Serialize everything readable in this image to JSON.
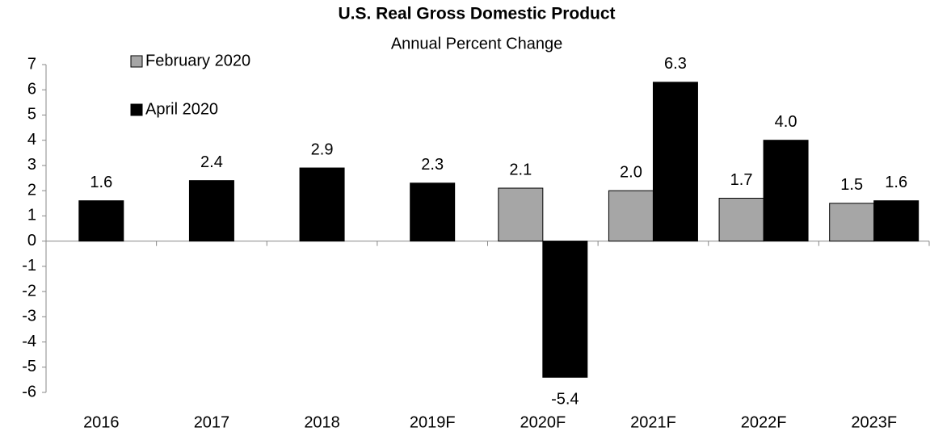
{
  "chart_data": {
    "type": "bar",
    "title": "U.S. Real Gross Domestic Product",
    "subtitle": "Annual Percent Change",
    "categories": [
      "2016",
      "2017",
      "2018",
      "2019F",
      "2020F",
      "2021F",
      "2022F",
      "2023F"
    ],
    "series": [
      {
        "name": "February 2020",
        "color": "#a6a6a6",
        "values": [
          null,
          null,
          null,
          null,
          2.1,
          2.0,
          1.7,
          1.5
        ],
        "value_labels": [
          null,
          null,
          null,
          null,
          "2.1",
          "2.0",
          "1.7",
          "1.5"
        ]
      },
      {
        "name": "April 2020",
        "color": "#000000",
        "values": [
          1.6,
          2.4,
          2.9,
          2.3,
          -5.4,
          6.3,
          4.0,
          1.6
        ],
        "value_labels": [
          "1.6",
          "2.4",
          "2.9",
          "2.3",
          "-5.4",
          "6.3",
          "4.0",
          "1.6"
        ]
      }
    ],
    "ylim": [
      -6,
      7
    ],
    "yticks": [
      -6,
      -5,
      -4,
      -3,
      -2,
      -1,
      0,
      1,
      2,
      3,
      4,
      5,
      6,
      7
    ],
    "grid": false,
    "legend": "top-left"
  }
}
